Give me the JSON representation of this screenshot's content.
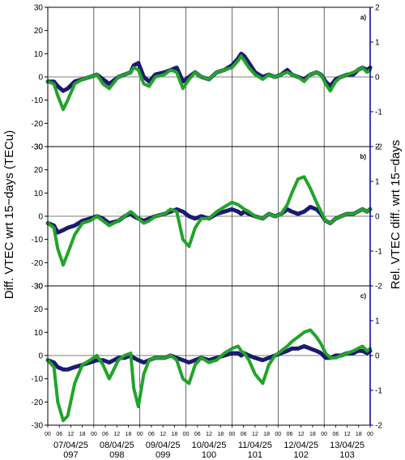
{
  "chart_data": [
    {
      "type": "line",
      "panel_label": "a)",
      "ylim": [
        -30,
        30
      ],
      "ylim_right": [
        -2,
        2
      ],
      "left_ticks": [
        30,
        20,
        10,
        0,
        -10,
        -20,
        -30
      ],
      "right_ticks": [
        2,
        1,
        0,
        -1,
        -2
      ],
      "series": [
        {
          "color": "#1a1a6e",
          "x": [
            0,
            8,
            13,
            20,
            26,
            35,
            45,
            55,
            64,
            72,
            80,
            92,
            100,
            108,
            112,
            118,
            125,
            132,
            140,
            152,
            160,
            168,
            176,
            184,
            192,
            200,
            210,
            220,
            230,
            240,
            248,
            252,
            256,
            262,
            270,
            280,
            288,
            296,
            304,
            312,
            318,
            326,
            334,
            342,
            350,
            356,
            362,
            368,
            375,
            382,
            390,
            398,
            404,
            410,
            416,
            420
          ],
          "y": [
            -2,
            -2,
            -4,
            -6,
            -5,
            -2,
            -1,
            0,
            1,
            -1,
            -3,
            0,
            1,
            2,
            5,
            6,
            0,
            -2,
            1,
            2,
            3,
            4,
            -2,
            0,
            2,
            0,
            -1,
            2,
            3,
            5,
            8,
            10,
            9,
            6,
            2,
            0,
            1,
            0,
            1,
            3,
            1,
            0,
            -1,
            1,
            2,
            1,
            -2,
            -4,
            -1,
            0,
            1,
            1,
            3,
            4,
            3,
            4
          ]
        },
        {
          "color": "#22a32a",
          "x": [
            0,
            8,
            13,
            20,
            26,
            35,
            45,
            55,
            64,
            72,
            80,
            92,
            100,
            108,
            112,
            118,
            125,
            132,
            140,
            152,
            160,
            168,
            176,
            184,
            192,
            200,
            210,
            220,
            230,
            240,
            248,
            252,
            256,
            262,
            270,
            280,
            288,
            296,
            304,
            312,
            318,
            326,
            334,
            342,
            350,
            356,
            362,
            368,
            375,
            382,
            390,
            398,
            404,
            410,
            416,
            420
          ],
          "y": [
            -2,
            -3,
            -8,
            -14,
            -10,
            -3,
            -1,
            0,
            1,
            -3,
            -5,
            0,
            1,
            2,
            4,
            3,
            -3,
            -4,
            0,
            1,
            3,
            2,
            -5,
            -1,
            2,
            0,
            -1,
            2,
            3,
            4,
            7,
            9,
            7,
            4,
            1,
            -1,
            1,
            0,
            1,
            2,
            1,
            0,
            -2,
            1,
            2,
            1,
            -3,
            -6,
            -2,
            0,
            1,
            2,
            3,
            4,
            2,
            3
          ]
        }
      ]
    },
    {
      "type": "line",
      "panel_label": "b)",
      "ylim": [
        -30,
        30
      ],
      "ylim_right": [
        -2,
        2
      ],
      "left_ticks": [
        30,
        20,
        10,
        0,
        -10,
        -20,
        -30
      ],
      "right_ticks": [
        2,
        1,
        0,
        -1,
        -2
      ],
      "series": [
        {
          "color": "#1a1a6e",
          "x": [
            0,
            8,
            13,
            20,
            26,
            35,
            45,
            55,
            64,
            72,
            80,
            92,
            100,
            108,
            112,
            118,
            125,
            132,
            140,
            152,
            160,
            168,
            176,
            184,
            192,
            200,
            210,
            220,
            230,
            240,
            248,
            252,
            256,
            262,
            270,
            280,
            288,
            296,
            304,
            312,
            318,
            326,
            334,
            342,
            350,
            356,
            362,
            368,
            375,
            382,
            390,
            398,
            404,
            410,
            416,
            420
          ],
          "y": [
            -3,
            -4,
            -7,
            -6,
            -5,
            -4,
            -2,
            -1,
            0,
            -1,
            -3,
            -2,
            0,
            1,
            0,
            -1,
            -2,
            -1,
            0,
            1,
            2,
            3,
            2,
            0,
            -1,
            0,
            -1,
            1,
            2,
            3,
            2,
            1,
            2,
            1,
            0,
            -1,
            1,
            0,
            1,
            3,
            2,
            1,
            2,
            4,
            3,
            1,
            -2,
            -3,
            -1,
            0,
            1,
            1,
            2,
            3,
            2,
            3
          ]
        },
        {
          "color": "#22a32a",
          "x": [
            0,
            8,
            13,
            20,
            26,
            35,
            45,
            55,
            64,
            72,
            80,
            92,
            100,
            108,
            112,
            118,
            125,
            132,
            140,
            152,
            160,
            168,
            176,
            184,
            192,
            200,
            210,
            220,
            230,
            240,
            248,
            252,
            256,
            262,
            270,
            280,
            288,
            296,
            304,
            312,
            318,
            326,
            334,
            342,
            350,
            356,
            362,
            368,
            375,
            382,
            390,
            398,
            404,
            410,
            416,
            420
          ],
          "y": [
            -3,
            -5,
            -14,
            -21,
            -16,
            -8,
            -3,
            -2,
            0,
            -2,
            -4,
            -2,
            0,
            2,
            1,
            -1,
            -3,
            -2,
            0,
            1,
            3,
            2,
            -10,
            -13,
            -5,
            -1,
            -1,
            2,
            4,
            6,
            5,
            4,
            3,
            2,
            0,
            -1,
            1,
            0,
            1,
            5,
            10,
            16,
            17,
            12,
            6,
            2,
            -2,
            -3,
            -1,
            0,
            1,
            1,
            2,
            3,
            2,
            3
          ]
        }
      ]
    },
    {
      "type": "line",
      "panel_label": "c)",
      "ylim": [
        -30,
        30
      ],
      "ylim_right": [
        -2,
        2
      ],
      "left_ticks": [
        30,
        20,
        10,
        0,
        -10,
        -20,
        -30
      ],
      "right_ticks": [
        1,
        0,
        -1,
        -2
      ],
      "series": [
        {
          "color": "#1a1a6e",
          "x": [
            0,
            8,
            13,
            20,
            26,
            35,
            45,
            55,
            64,
            72,
            80,
            92,
            100,
            108,
            112,
            118,
            125,
            132,
            140,
            152,
            160,
            168,
            176,
            184,
            192,
            200,
            210,
            220,
            230,
            240,
            248,
            252,
            256,
            262,
            270,
            280,
            288,
            296,
            304,
            312,
            318,
            326,
            334,
            342,
            350,
            356,
            362,
            368,
            375,
            382,
            390,
            398,
            404,
            410,
            416,
            420
          ],
          "y": [
            -2,
            -3,
            -5,
            -6,
            -6,
            -5,
            -4,
            -3,
            -2,
            -2,
            -3,
            -1,
            -1,
            0,
            -1,
            -2,
            -3,
            -2,
            -1,
            -1,
            0,
            -1,
            -2,
            -3,
            -2,
            -1,
            -2,
            -1,
            0,
            1,
            1,
            0,
            1,
            0,
            -1,
            -2,
            -1,
            0,
            1,
            2,
            3,
            3,
            4,
            3,
            2,
            1,
            -1,
            -1,
            0,
            0,
            1,
            1,
            2,
            2,
            1,
            2
          ]
        },
        {
          "color": "#22a32a",
          "x": [
            0,
            8,
            13,
            20,
            26,
            35,
            45,
            55,
            64,
            72,
            80,
            92,
            100,
            108,
            112,
            118,
            125,
            132,
            140,
            152,
            160,
            168,
            176,
            184,
            192,
            200,
            210,
            220,
            230,
            240,
            248,
            252,
            256,
            262,
            270,
            280,
            288,
            296,
            304,
            312,
            318,
            326,
            334,
            342,
            350,
            356,
            362,
            368,
            375,
            382,
            390,
            398,
            404,
            410,
            416,
            420
          ],
          "y": [
            -2,
            -5,
            -20,
            -28,
            -26,
            -12,
            -4,
            -2,
            0,
            -4,
            -10,
            -2,
            0,
            1,
            -14,
            -22,
            -8,
            -2,
            -1,
            -1,
            0,
            -2,
            -10,
            -12,
            -4,
            -1,
            -3,
            -2,
            1,
            3,
            4,
            2,
            1,
            -2,
            -8,
            -12,
            -4,
            0,
            2,
            4,
            6,
            8,
            10,
            11,
            8,
            5,
            1,
            -1,
            -1,
            0,
            1,
            2,
            3,
            4,
            2,
            3
          ]
        }
      ]
    }
  ],
  "axes": {
    "ylabel_left": "Diff. VTEC wrt 15−days (TECu)",
    "ylabel_right": "Rel. VTEC diff. wrt 15−days",
    "hour_ticks": [
      "00",
      "06",
      "12",
      "18"
    ],
    "last_tick": "00",
    "days": [
      {
        "date": "07/04/25",
        "doy": "097"
      },
      {
        "date": "08/04/25",
        "doy": "098"
      },
      {
        "date": "09/04/25",
        "doy": "099"
      },
      {
        "date": "10/04/25",
        "doy": "100"
      },
      {
        "date": "11/04/25",
        "doy": "101"
      },
      {
        "date": "12/04/25",
        "doy": "102"
      },
      {
        "date": "13/04/25",
        "doy": "103"
      }
    ],
    "x_range_hours": [
      0,
      168
    ],
    "colors": {
      "frame": "#000000",
      "right_axis": "#00008b",
      "grid": "#000000"
    }
  }
}
